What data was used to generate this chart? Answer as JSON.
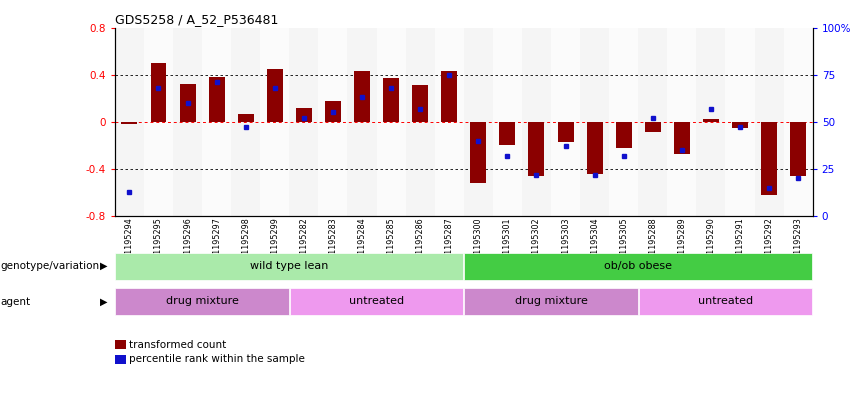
{
  "title": "GDS5258 / A_52_P536481",
  "samples": [
    "GSM1195294",
    "GSM1195295",
    "GSM1195296",
    "GSM1195297",
    "GSM1195298",
    "GSM1195299",
    "GSM1195282",
    "GSM1195283",
    "GSM1195284",
    "GSM1195285",
    "GSM1195286",
    "GSM1195287",
    "GSM1195300",
    "GSM1195301",
    "GSM1195302",
    "GSM1195303",
    "GSM1195304",
    "GSM1195305",
    "GSM1195288",
    "GSM1195289",
    "GSM1195290",
    "GSM1195291",
    "GSM1195292",
    "GSM1195293"
  ],
  "bar_values": [
    -0.02,
    0.5,
    0.32,
    0.38,
    0.07,
    0.45,
    0.12,
    0.18,
    0.43,
    0.37,
    0.31,
    0.43,
    -0.52,
    -0.2,
    -0.46,
    -0.17,
    -0.44,
    -0.22,
    -0.09,
    -0.27,
    0.02,
    -0.05,
    -0.62,
    -0.46
  ],
  "dot_values_pct": [
    13,
    68,
    60,
    71,
    47,
    68,
    52,
    55,
    63,
    68,
    57,
    75,
    40,
    32,
    22,
    37,
    22,
    32,
    52,
    35,
    57,
    47,
    15,
    20
  ],
  "ylim_left": [
    -0.8,
    0.8
  ],
  "ylim_right": [
    0,
    100
  ],
  "yticks_left": [
    -0.8,
    -0.4,
    0.0,
    0.4,
    0.8
  ],
  "yticks_right": [
    0,
    25,
    50,
    75,
    100
  ],
  "ytick_labels_right": [
    "0",
    "25",
    "50",
    "75",
    "100%"
  ],
  "bar_color": "#8B0000",
  "dot_color": "#1010CC",
  "genotype_groups": [
    {
      "label": "wild type lean",
      "start": 0,
      "end": 12,
      "color": "#AAEAAA"
    },
    {
      "label": "ob/ob obese",
      "start": 12,
      "end": 24,
      "color": "#44CC44"
    }
  ],
  "agent_groups": [
    {
      "label": "drug mixture",
      "start": 0,
      "end": 6,
      "color": "#CC88CC"
    },
    {
      "label": "untreated",
      "start": 6,
      "end": 12,
      "color": "#EE99EE"
    },
    {
      "label": "drug mixture",
      "start": 12,
      "end": 18,
      "color": "#CC88CC"
    },
    {
      "label": "untreated",
      "start": 18,
      "end": 24,
      "color": "#EE99EE"
    }
  ],
  "legend_bar_label": "transformed count",
  "legend_dot_label": "percentile rank within the sample",
  "genotype_label": "genotype/variation",
  "agent_label": "agent"
}
